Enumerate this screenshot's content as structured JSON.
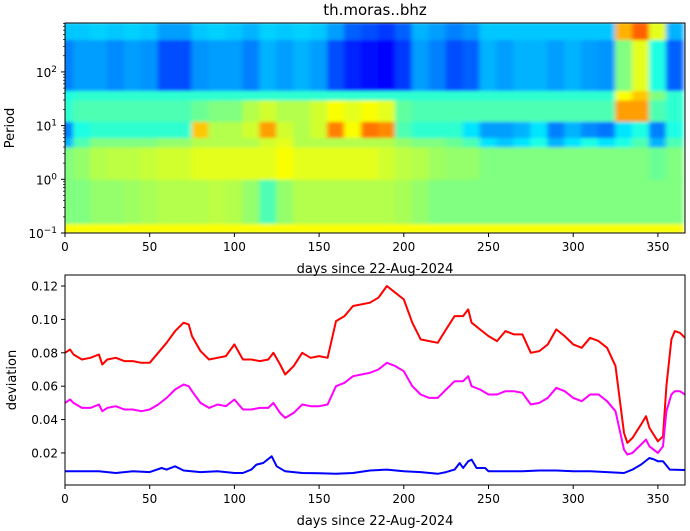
{
  "chart_data": [
    {
      "type": "heatmap",
      "title": "th.moras..bhz",
      "xlabel": "days since 22-Aug-2024",
      "ylabel": "Period",
      "xlim": [
        0,
        366
      ],
      "ylim": [
        0.1,
        815
      ],
      "yscale": "log",
      "xticks": [
        0,
        50,
        100,
        150,
        200,
        250,
        300,
        350
      ],
      "yticks": [
        {
          "base": "10",
          "exp": "−1",
          "value": 0.1
        },
        {
          "base": "10",
          "exp": "0",
          "value": 1
        },
        {
          "base": "10",
          "exp": "1",
          "value": 10
        },
        {
          "base": "10",
          "exp": "2",
          "value": 100
        }
      ],
      "colormap": "jet",
      "x": [
        0,
        10,
        20,
        30,
        40,
        50,
        60,
        70,
        80,
        90,
        100,
        110,
        120,
        130,
        140,
        150,
        160,
        170,
        180,
        190,
        200,
        210,
        220,
        230,
        240,
        250,
        260,
        270,
        280,
        290,
        300,
        310,
        320,
        330,
        340,
        350,
        360
      ],
      "period_bands": [
        [
          0.1,
          0.15
        ],
        [
          0.15,
          1
        ],
        [
          1,
          4
        ],
        [
          4,
          6
        ],
        [
          6,
          12
        ],
        [
          12,
          30
        ],
        [
          30,
          45
        ],
        [
          45,
          400
        ],
        [
          400,
          815
        ]
      ],
      "values": [
        [
          0.62,
          0.62,
          0.62,
          0.62,
          0.62,
          0.62,
          0.62,
          0.62,
          0.62,
          0.62,
          0.62,
          0.62,
          0.62,
          0.62,
          0.62,
          0.62,
          0.62,
          0.62,
          0.62,
          0.62,
          0.62,
          0.62,
          0.62,
          0.62,
          0.62,
          0.62,
          0.62,
          0.62,
          0.62,
          0.62,
          0.62,
          0.62,
          0.62,
          0.62,
          0.62,
          0.62,
          0.62
        ],
        [
          0.5,
          0.5,
          0.52,
          0.52,
          0.53,
          0.54,
          0.55,
          0.55,
          0.55,
          0.56,
          0.55,
          0.52,
          0.45,
          0.52,
          0.55,
          0.55,
          0.55,
          0.55,
          0.55,
          0.55,
          0.54,
          0.52,
          0.5,
          0.5,
          0.5,
          0.5,
          0.5,
          0.5,
          0.5,
          0.5,
          0.5,
          0.5,
          0.5,
          0.5,
          0.5,
          0.5,
          0.5
        ],
        [
          0.5,
          0.52,
          0.55,
          0.56,
          0.56,
          0.57,
          0.58,
          0.58,
          0.6,
          0.6,
          0.6,
          0.6,
          0.6,
          0.62,
          0.6,
          0.6,
          0.6,
          0.6,
          0.6,
          0.58,
          0.56,
          0.55,
          0.53,
          0.52,
          0.52,
          0.5,
          0.5,
          0.5,
          0.5,
          0.5,
          0.5,
          0.5,
          0.5,
          0.5,
          0.5,
          0.48,
          0.5
        ],
        [
          0.3,
          0.45,
          0.5,
          0.5,
          0.5,
          0.5,
          0.52,
          0.52,
          0.55,
          0.55,
          0.55,
          0.55,
          0.58,
          0.6,
          0.55,
          0.55,
          0.55,
          0.55,
          0.55,
          0.55,
          0.52,
          0.5,
          0.5,
          0.48,
          0.45,
          0.35,
          0.32,
          0.35,
          0.4,
          0.3,
          0.35,
          0.4,
          0.35,
          0.4,
          0.45,
          0.3,
          0.45
        ],
        [
          0.25,
          0.4,
          0.42,
          0.42,
          0.42,
          0.42,
          0.42,
          0.42,
          0.68,
          0.55,
          0.55,
          0.58,
          0.72,
          0.58,
          0.55,
          0.58,
          0.75,
          0.62,
          0.76,
          0.74,
          0.45,
          0.42,
          0.42,
          0.42,
          0.35,
          0.28,
          0.28,
          0.3,
          0.35,
          0.25,
          0.3,
          0.26,
          0.24,
          0.35,
          0.4,
          0.25,
          0.4
        ],
        [
          0.42,
          0.45,
          0.45,
          0.45,
          0.45,
          0.45,
          0.45,
          0.45,
          0.48,
          0.5,
          0.5,
          0.55,
          0.58,
          0.55,
          0.55,
          0.58,
          0.62,
          0.6,
          0.62,
          0.6,
          0.47,
          0.45,
          0.45,
          0.45,
          0.45,
          0.45,
          0.45,
          0.45,
          0.45,
          0.45,
          0.45,
          0.45,
          0.45,
          0.72,
          0.72,
          0.45,
          0.42
        ],
        [
          0.4,
          0.42,
          0.42,
          0.42,
          0.42,
          0.42,
          0.42,
          0.42,
          0.42,
          0.42,
          0.42,
          0.42,
          0.42,
          0.42,
          0.42,
          0.42,
          0.42,
          0.42,
          0.42,
          0.42,
          0.42,
          0.42,
          0.42,
          0.42,
          0.42,
          0.42,
          0.42,
          0.42,
          0.42,
          0.42,
          0.42,
          0.42,
          0.42,
          0.62,
          0.68,
          0.5,
          0.42
        ],
        [
          0.25,
          0.28,
          0.28,
          0.26,
          0.28,
          0.27,
          0.2,
          0.2,
          0.27,
          0.28,
          0.28,
          0.25,
          0.3,
          0.28,
          0.3,
          0.28,
          0.2,
          0.16,
          0.14,
          0.13,
          0.18,
          0.28,
          0.25,
          0.2,
          0.22,
          0.3,
          0.28,
          0.3,
          0.3,
          0.28,
          0.3,
          0.28,
          0.27,
          0.5,
          0.6,
          0.4,
          0.22
        ],
        [
          0.32,
          0.32,
          0.33,
          0.32,
          0.33,
          0.32,
          0.28,
          0.28,
          0.32,
          0.33,
          0.32,
          0.3,
          0.33,
          0.32,
          0.33,
          0.32,
          0.28,
          0.22,
          0.2,
          0.18,
          0.22,
          0.3,
          0.28,
          0.25,
          0.27,
          0.32,
          0.32,
          0.32,
          0.32,
          0.32,
          0.32,
          0.32,
          0.32,
          0.7,
          0.78,
          0.6,
          0.3
        ]
      ]
    },
    {
      "type": "line",
      "xlabel": "days since 22-Aug-2024",
      "ylabel": "deviation",
      "xlim": [
        0,
        366
      ],
      "ylim": [
        0.0008,
        0.1266
      ],
      "xticks": [
        0,
        50,
        100,
        150,
        200,
        250,
        300,
        350
      ],
      "yticks": [
        "0.02",
        "0.04",
        "0.06",
        "0.08",
        "0.10",
        "0.12"
      ],
      "series": [
        {
          "color": "#ff0000",
          "x": [
            0,
            3,
            5,
            10,
            15,
            20,
            22,
            25,
            30,
            35,
            40,
            45,
            50,
            55,
            60,
            65,
            70,
            73,
            75,
            80,
            85,
            90,
            95,
            100,
            105,
            110,
            115,
            120,
            123,
            127,
            130,
            135,
            140,
            145,
            150,
            155,
            160,
            165,
            170,
            175,
            180,
            185,
            190,
            195,
            200,
            205,
            210,
            215,
            220,
            225,
            230,
            235,
            238,
            240,
            245,
            250,
            255,
            260,
            265,
            270,
            275,
            280,
            285,
            290,
            295,
            300,
            305,
            310,
            315,
            320,
            325,
            330,
            332,
            335,
            340,
            343,
            345,
            350,
            353,
            355,
            358,
            360,
            363,
            366
          ],
          "y": [
            0.08,
            0.082,
            0.079,
            0.076,
            0.077,
            0.079,
            0.073,
            0.076,
            0.077,
            0.075,
            0.075,
            0.074,
            0.074,
            0.08,
            0.086,
            0.093,
            0.098,
            0.097,
            0.09,
            0.081,
            0.076,
            0.077,
            0.078,
            0.085,
            0.076,
            0.076,
            0.075,
            0.076,
            0.08,
            0.073,
            0.067,
            0.072,
            0.08,
            0.077,
            0.078,
            0.077,
            0.099,
            0.102,
            0.108,
            0.109,
            0.11,
            0.113,
            0.12,
            0.116,
            0.112,
            0.098,
            0.088,
            0.087,
            0.086,
            0.094,
            0.102,
            0.102,
            0.106,
            0.098,
            0.094,
            0.09,
            0.087,
            0.093,
            0.091,
            0.091,
            0.08,
            0.081,
            0.085,
            0.094,
            0.09,
            0.085,
            0.083,
            0.089,
            0.087,
            0.083,
            0.072,
            0.032,
            0.026,
            0.029,
            0.037,
            0.042,
            0.035,
            0.027,
            0.03,
            0.06,
            0.088,
            0.093,
            0.092,
            0.089
          ]
        },
        {
          "color": "#ff00ff",
          "x": [
            0,
            3,
            5,
            10,
            15,
            20,
            22,
            25,
            30,
            35,
            40,
            45,
            50,
            55,
            60,
            65,
            70,
            73,
            75,
            80,
            85,
            90,
            95,
            100,
            105,
            110,
            115,
            120,
            123,
            127,
            130,
            135,
            140,
            145,
            150,
            155,
            160,
            165,
            170,
            175,
            180,
            185,
            190,
            195,
            200,
            205,
            210,
            215,
            220,
            225,
            230,
            235,
            238,
            240,
            245,
            250,
            255,
            260,
            265,
            270,
            275,
            280,
            285,
            290,
            295,
            300,
            305,
            310,
            315,
            320,
            325,
            330,
            332,
            335,
            340,
            343,
            345,
            350,
            353,
            355,
            358,
            360,
            363,
            366
          ],
          "y": [
            0.05,
            0.052,
            0.05,
            0.047,
            0.047,
            0.049,
            0.045,
            0.047,
            0.048,
            0.046,
            0.046,
            0.045,
            0.046,
            0.049,
            0.053,
            0.058,
            0.061,
            0.06,
            0.057,
            0.05,
            0.047,
            0.049,
            0.048,
            0.052,
            0.046,
            0.046,
            0.047,
            0.047,
            0.05,
            0.044,
            0.041,
            0.044,
            0.049,
            0.048,
            0.048,
            0.049,
            0.06,
            0.062,
            0.066,
            0.067,
            0.068,
            0.07,
            0.074,
            0.072,
            0.069,
            0.06,
            0.055,
            0.053,
            0.053,
            0.058,
            0.063,
            0.063,
            0.066,
            0.06,
            0.058,
            0.055,
            0.055,
            0.057,
            0.057,
            0.056,
            0.049,
            0.05,
            0.053,
            0.059,
            0.057,
            0.053,
            0.051,
            0.055,
            0.055,
            0.051,
            0.045,
            0.022,
            0.019,
            0.02,
            0.025,
            0.028,
            0.024,
            0.02,
            0.024,
            0.045,
            0.055,
            0.057,
            0.057,
            0.055
          ]
        },
        {
          "color": "#0000ff",
          "x": [
            0,
            10,
            20,
            30,
            40,
            50,
            57,
            60,
            65,
            70,
            80,
            90,
            100,
            105,
            110,
            113,
            117,
            122,
            125,
            130,
            140,
            150,
            160,
            170,
            180,
            190,
            200,
            210,
            220,
            225,
            230,
            233,
            235,
            238,
            240,
            243,
            248,
            250,
            260,
            270,
            280,
            290,
            300,
            310,
            320,
            330,
            335,
            340,
            345,
            348,
            350,
            353,
            357,
            366
          ],
          "y": [
            0.009,
            0.009,
            0.009,
            0.008,
            0.009,
            0.0085,
            0.011,
            0.01,
            0.012,
            0.0095,
            0.0085,
            0.009,
            0.008,
            0.008,
            0.01,
            0.013,
            0.014,
            0.018,
            0.012,
            0.009,
            0.008,
            0.0078,
            0.0075,
            0.008,
            0.0095,
            0.01,
            0.009,
            0.0085,
            0.0075,
            0.0085,
            0.01,
            0.014,
            0.011,
            0.015,
            0.016,
            0.011,
            0.011,
            0.009,
            0.009,
            0.009,
            0.0095,
            0.0095,
            0.009,
            0.009,
            0.0085,
            0.008,
            0.01,
            0.013,
            0.017,
            0.016,
            0.015,
            0.015,
            0.01,
            0.0098
          ]
        }
      ]
    }
  ]
}
